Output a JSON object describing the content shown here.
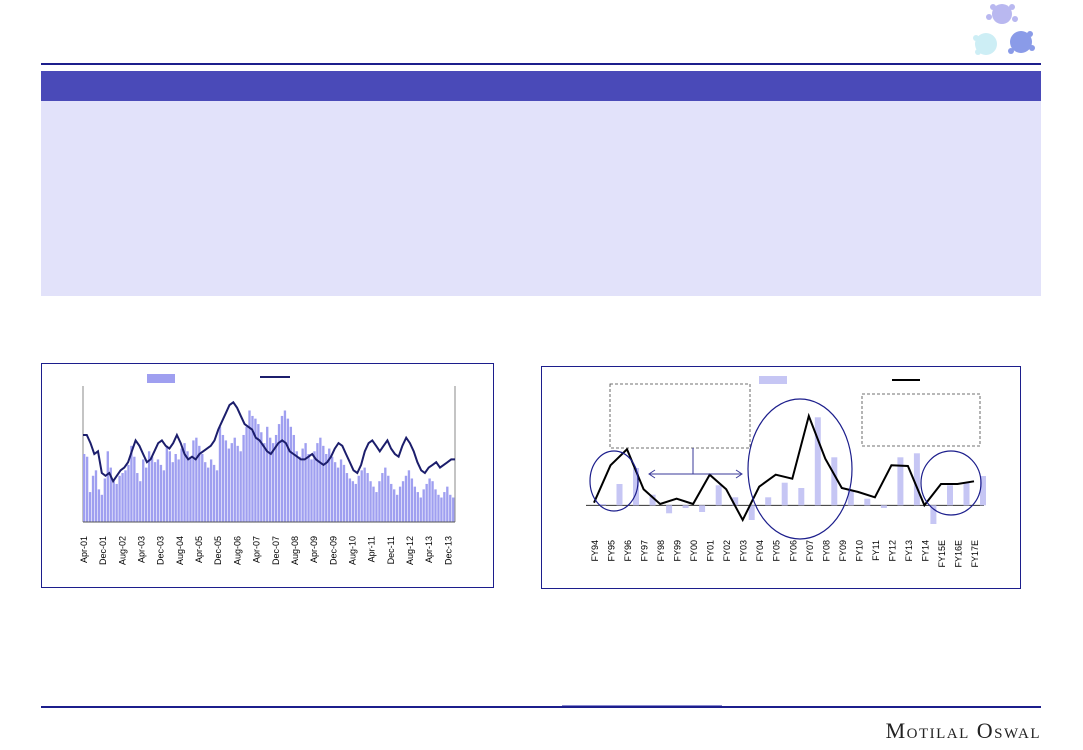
{
  "header": {
    "title": ""
  },
  "branding": {
    "company": "Motilal Oswal",
    "logo_icon": "molecule-icon"
  },
  "colors": {
    "bar": "#9f9ff0",
    "bar2": "#c6c6f4",
    "line": "#1c1e6c",
    "line2": "#000000",
    "accent": "#4a4ab8",
    "panel": "#e2e2fa"
  },
  "chart_data": [
    {
      "type": "bar+line",
      "title": "",
      "xlabel": "",
      "ylabel": "",
      "tick_labels": [
        "Apr-01",
        "Dec-01",
        "Aug-02",
        "Apr-03",
        "Dec-03",
        "Aug-04",
        "Apr-05",
        "Dec-05",
        "Aug-06",
        "Apr-07",
        "Dec-07",
        "Aug-08",
        "Apr-09",
        "Dec-09",
        "Aug-10",
        "Apr-11",
        "Dec-11",
        "Aug-12",
        "Apr-13",
        "Dec-13"
      ],
      "legend": {
        "placement": "top",
        "items": [
          {
            "symbol": "bar",
            "label": ""
          },
          {
            "symbol": "line",
            "label": ""
          }
        ]
      },
      "ylim": [
        0,
        100
      ],
      "series": [
        {
          "kind": "bar",
          "values": [
            50,
            48,
            22,
            34,
            38,
            24,
            20,
            32,
            52,
            40,
            30,
            28,
            34,
            36,
            38,
            42,
            56,
            48,
            36,
            30,
            46,
            40,
            52,
            48,
            44,
            46,
            42,
            38,
            56,
            52,
            44,
            50,
            46,
            54,
            58,
            52,
            48,
            60,
            62,
            56,
            50,
            44,
            40,
            46,
            42,
            38,
            70,
            64,
            60,
            54,
            58,
            62,
            56,
            52,
            64,
            70,
            82,
            78,
            76,
            72,
            66,
            58,
            70,
            62,
            58,
            64,
            72,
            78,
            82,
            76,
            70,
            64,
            52,
            48,
            54,
            58,
            50,
            46,
            52,
            58,
            62,
            56,
            50,
            54,
            48,
            44,
            40,
            46,
            42,
            36,
            32,
            30,
            28,
            34,
            38,
            40,
            36,
            30,
            26,
            22,
            30,
            36,
            40,
            34,
            28,
            24,
            20,
            26,
            30,
            34,
            38,
            32,
            26,
            22,
            18,
            24,
            28,
            32,
            30,
            24,
            20,
            18,
            22,
            26,
            20,
            18
          ]
        },
        {
          "kind": "line",
          "values": [
            64,
            64,
            58,
            50,
            52,
            36,
            34,
            36,
            30,
            34,
            38,
            40,
            44,
            52,
            60,
            56,
            50,
            44,
            46,
            52,
            58,
            60,
            56,
            54,
            58,
            64,
            58,
            50,
            46,
            48,
            46,
            50,
            52,
            54,
            56,
            60,
            68,
            74,
            80,
            86,
            88,
            84,
            78,
            72,
            70,
            68,
            62,
            60,
            56,
            52,
            50,
            54,
            58,
            60,
            58,
            52,
            50,
            48,
            46,
            46,
            48,
            50,
            46,
            44,
            42,
            44,
            48,
            54,
            58,
            56,
            50,
            44,
            38,
            36,
            42,
            52,
            58,
            60,
            56,
            52,
            56,
            60,
            54,
            50,
            48,
            56,
            62,
            58,
            52,
            44,
            38,
            36,
            40,
            42,
            44,
            40,
            42,
            44,
            46,
            46
          ]
        }
      ]
    },
    {
      "type": "bar+line",
      "title": "",
      "xlabel": "",
      "ylabel": "",
      "categories": [
        "FY94",
        "FY95",
        "FY96",
        "FY97",
        "FY98",
        "FY99",
        "FY00",
        "FY01",
        "FY02",
        "FY03",
        "FY04",
        "FY05",
        "FY06",
        "FY07",
        "FY08",
        "FY09",
        "FY10",
        "FY11",
        "FY12",
        "FY13",
        "FY14",
        "FY15E",
        "FY16E",
        "FY17E"
      ],
      "legend": {
        "placement": "top",
        "items": [
          {
            "symbol": "bar",
            "label": ""
          },
          {
            "symbol": "line",
            "label": ""
          }
        ]
      },
      "ylim": [
        -4,
        14
      ],
      "series": [
        {
          "kind": "bar",
          "values": [
            0.2,
            3.2,
            5.6,
            1.6,
            -1.2,
            -0.4,
            -1.0,
            3.0,
            1.2,
            -2.2,
            1.2,
            3.4,
            2.6,
            13.2,
            7.2,
            2.2,
            1.0,
            -0.4,
            7.2,
            7.8,
            -2.8,
            3.0,
            3.4,
            4.4
          ]
        },
        {
          "kind": "line",
          "values": [
            0.4,
            6.0,
            8.4,
            2.4,
            0.2,
            1.0,
            0.2,
            4.6,
            2.4,
            -2.2,
            2.8,
            4.6,
            4.0,
            13.4,
            7.0,
            2.6,
            2.0,
            1.2,
            6.0,
            5.9,
            0.0,
            3.2,
            3.2,
            3.6
          ]
        }
      ]
    }
  ]
}
